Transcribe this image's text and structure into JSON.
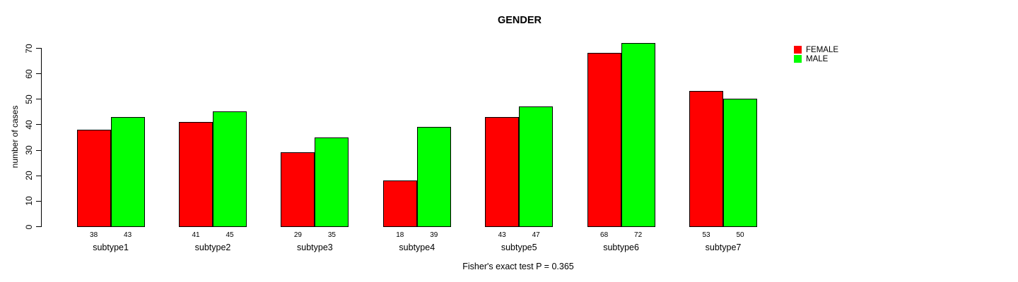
{
  "chart_data": {
    "type": "bar",
    "title": "GENDER",
    "categories": [
      "subtype1",
      "subtype2",
      "subtype3",
      "subtype4",
      "subtype5",
      "subtype6",
      "subtype7"
    ],
    "series": [
      {
        "name": "FEMALE",
        "color": "#FF0000",
        "values": [
          38,
          41,
          29,
          18,
          43,
          68,
          53
        ]
      },
      {
        "name": "MALE",
        "color": "#00FF00",
        "values": [
          43,
          45,
          35,
          39,
          47,
          72,
          50
        ]
      }
    ],
    "xlabel": "",
    "ylabel": "number of cases",
    "ylim": [
      0,
      70
    ],
    "yticks": [
      0,
      10,
      20,
      30,
      40,
      50,
      60,
      70
    ],
    "bar_value_labels_shown": true,
    "grid": false,
    "legend_position": "top-right",
    "annotation": "Fisher's exact test P = 0.365"
  },
  "colors": {
    "female": "#FF0000",
    "male": "#00FF00",
    "axis": "#000000",
    "background": "#FFFFFF",
    "text": "#000000"
  }
}
